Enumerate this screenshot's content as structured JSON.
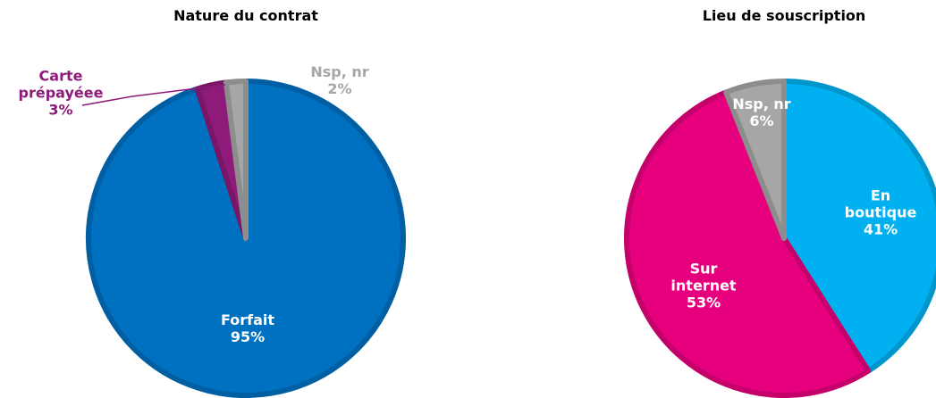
{
  "chart_data": [
    {
      "type": "pie",
      "title": "Nature du contrat",
      "categories": [
        "Forfait",
        "Carte prépayéee",
        "Nsp, nr"
      ],
      "values": [
        95,
        3,
        2
      ],
      "value_labels": [
        "95%",
        "3%",
        "2%"
      ],
      "colors": [
        "#0070c0",
        "#8e1a7a",
        "#a6a6a6"
      ]
    },
    {
      "type": "pie",
      "title": "Lieu de souscription",
      "categories": [
        "En boutique",
        "Sur internet",
        "Nsp, nr"
      ],
      "values": [
        41,
        53,
        6
      ],
      "value_labels": [
        "41%",
        "53%",
        "6%"
      ],
      "colors": [
        "#00b0f0",
        "#e6007e",
        "#a6a6a6"
      ]
    }
  ]
}
